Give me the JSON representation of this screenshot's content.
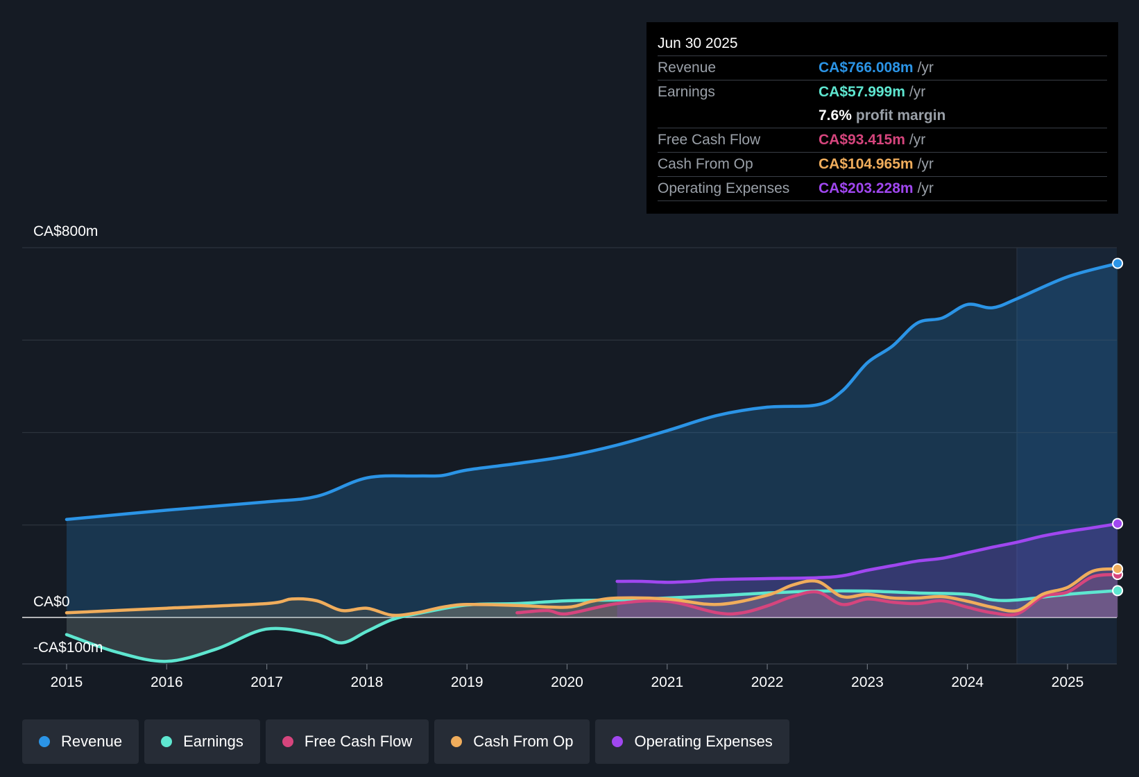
{
  "tooltip": {
    "date": "Jun 30 2025",
    "rows": [
      {
        "label": "Revenue",
        "value": "CA$766.008m",
        "unit": "/yr",
        "color": "#2b94e6"
      },
      {
        "label": "Earnings",
        "value": "CA$57.999m",
        "unit": "/yr",
        "color": "#5ee6d0"
      },
      {
        "label": "",
        "value": "7.6%",
        "unit": "profit margin",
        "color": "#ffffff"
      },
      {
        "label": "Free Cash Flow",
        "value": "CA$93.415m",
        "unit": "/yr",
        "color": "#d6457d"
      },
      {
        "label": "Cash From Op",
        "value": "CA$104.965m",
        "unit": "/yr",
        "color": "#f0ad5c"
      },
      {
        "label": "Operating Expenses",
        "value": "CA$203.228m",
        "unit": "/yr",
        "color": "#a047f0"
      }
    ]
  },
  "legend": [
    {
      "label": "Revenue",
      "color": "#2b94e6"
    },
    {
      "label": "Earnings",
      "color": "#5ee6d0"
    },
    {
      "label": "Free Cash Flow",
      "color": "#d6457d"
    },
    {
      "label": "Cash From Op",
      "color": "#f0ad5c"
    },
    {
      "label": "Operating Expenses",
      "color": "#a047f0"
    }
  ],
  "chart_data": {
    "type": "line",
    "title": "",
    "xlabel": "",
    "ylabel": "",
    "y_labels": [
      "CA$800m",
      "CA$0",
      "-CA$100m"
    ],
    "ylim": [
      -100,
      800
    ],
    "xlim": [
      2015,
      2025.5
    ],
    "x_ticks": [
      2015,
      2016,
      2017,
      2018,
      2019,
      2020,
      2021,
      2022,
      2023,
      2024,
      2025
    ],
    "x_tick_labels": [
      "2015",
      "2016",
      "2017",
      "2018",
      "2019",
      "2020",
      "2021",
      "2022",
      "2023",
      "2024",
      "2025"
    ],
    "forecast_start": 2024.5,
    "series": [
      {
        "name": "Revenue",
        "color": "#2b94e6",
        "x": [
          2015,
          2016,
          2017,
          2017.5,
          2018,
          2018.5,
          2018.75,
          2019,
          2019.5,
          2020,
          2020.5,
          2021,
          2021.5,
          2022,
          2022.5,
          2022.75,
          2023,
          2023.25,
          2023.5,
          2023.75,
          2024,
          2024.25,
          2024.5,
          2025,
          2025.5
        ],
        "y": [
          212,
          232,
          250,
          262,
          302,
          306,
          307,
          319,
          333,
          349,
          373,
          404,
          437,
          455,
          460,
          490,
          551,
          587,
          637,
          648,
          677,
          670,
          690,
          737,
          766
        ]
      },
      {
        "name": "Earnings",
        "color": "#5ee6d0",
        "x": [
          2015,
          2015.5,
          2016,
          2016.5,
          2017,
          2017.5,
          2017.75,
          2018,
          2018.25,
          2018.5,
          2019,
          2019.5,
          2020,
          2020.5,
          2021,
          2021.5,
          2022,
          2022.5,
          2023,
          2023.5,
          2024,
          2024.25,
          2024.5,
          2025,
          2025.5
        ],
        "y": [
          -37,
          -75,
          -95,
          -68,
          -25,
          -37,
          -55,
          -30,
          -5,
          8,
          27,
          30,
          36,
          38,
          42,
          47,
          53,
          57,
          57,
          53,
          50,
          38,
          38,
          50,
          58
        ]
      },
      {
        "name": "Free Cash Flow",
        "color": "#d6457d",
        "x": [
          2019.5,
          2019.8,
          2020,
          2020.5,
          2021,
          2021.5,
          2021.75,
          2022,
          2022.25,
          2022.5,
          2022.75,
          2023,
          2023.25,
          2023.5,
          2023.75,
          2024,
          2024.25,
          2024.5,
          2024.75,
          2025,
          2025.25,
          2025.5
        ],
        "y": [
          10,
          15,
          8,
          30,
          35,
          10,
          10,
          25,
          45,
          55,
          28,
          40,
          33,
          30,
          36,
          22,
          10,
          8,
          45,
          55,
          88,
          93
        ]
      },
      {
        "name": "Cash From Op",
        "color": "#f0ad5c",
        "x": [
          2015,
          2016,
          2017,
          2017.25,
          2017.5,
          2017.75,
          2018,
          2018.25,
          2018.5,
          2018.75,
          2019,
          2019.5,
          2020,
          2020.25,
          2020.5,
          2021,
          2021.5,
          2022,
          2022.25,
          2022.5,
          2022.75,
          2023,
          2023.25,
          2023.5,
          2023.75,
          2024,
          2024.25,
          2024.5,
          2024.75,
          2025,
          2025.25,
          2025.5
        ],
        "y": [
          10,
          20,
          30,
          40,
          36,
          15,
          20,
          5,
          10,
          22,
          28,
          26,
          22,
          35,
          42,
          40,
          28,
          48,
          70,
          78,
          45,
          50,
          42,
          42,
          45,
          35,
          22,
          15,
          50,
          65,
          100,
          105
        ]
      },
      {
        "name": "Operating Expenses",
        "color": "#a047f0",
        "x": [
          2020.5,
          2020.75,
          2021,
          2021.25,
          2021.5,
          2022,
          2022.5,
          2022.75,
          2023,
          2023.25,
          2023.5,
          2023.75,
          2024,
          2024.25,
          2024.5,
          2024.75,
          2025,
          2025.25,
          2025.5
        ],
        "y": [
          78,
          78,
          76,
          78,
          82,
          84,
          86,
          90,
          102,
          112,
          122,
          128,
          140,
          152,
          163,
          176,
          186,
          194,
          203
        ]
      }
    ]
  }
}
